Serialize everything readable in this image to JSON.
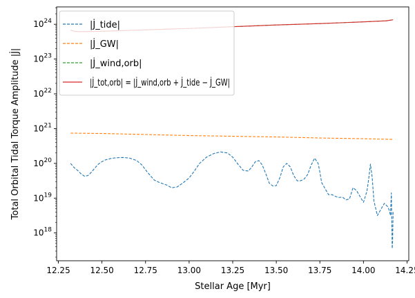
{
  "chart_data": {
    "type": "line",
    "title": "",
    "xlabel": "Stellar Age [Myr]",
    "ylabel": "Total Orbital Tidal Torque Amplitude |J̇|",
    "xlim": [
      12.24,
      14.26
    ],
    "ylim_log10": [
      17.2,
      24.5
    ],
    "yscale": "log",
    "x_ticks": [
      12.25,
      12.5,
      12.75,
      13.0,
      13.25,
      13.5,
      13.75,
      14.0,
      14.25
    ],
    "x_tick_labels": [
      "12.25",
      "12.50",
      "12.75",
      "13.00",
      "13.25",
      "13.50",
      "13.75",
      "14.00",
      "14.25"
    ],
    "y_tick_exponents": [
      18,
      19,
      20,
      21,
      22,
      23,
      24
    ],
    "y_tick_labels": [
      "10^18",
      "10^19",
      "10^20",
      "10^21",
      "10^22",
      "10^23",
      "10^24"
    ],
    "grid": false,
    "legend_position": "top-left",
    "series": [
      {
        "name": "|J̇_tide|",
        "color": "#1f77b4",
        "dash": "dashed",
        "x": [
          12.32,
          12.34,
          12.36,
          12.38,
          12.4,
          12.42,
          12.44,
          12.46,
          12.48,
          12.5,
          12.52,
          12.55,
          12.58,
          12.62,
          12.66,
          12.7,
          12.73,
          12.76,
          12.8,
          12.83,
          12.87,
          12.9,
          12.93,
          12.96,
          13.0,
          13.03,
          13.06,
          13.1,
          13.14,
          13.18,
          13.22,
          13.25,
          13.28,
          13.31,
          13.34,
          13.36,
          13.38,
          13.4,
          13.42,
          13.44,
          13.46,
          13.48,
          13.5,
          13.52,
          13.54,
          13.56,
          13.58,
          13.6,
          13.62,
          13.64,
          13.66,
          13.68,
          13.7,
          13.72,
          13.74,
          13.75,
          13.76,
          13.78,
          13.8,
          13.82,
          13.84,
          13.86,
          13.88,
          13.9,
          13.92,
          13.94,
          13.96,
          13.98,
          14.0,
          14.02,
          14.03,
          14.04,
          14.05,
          14.06,
          14.08,
          14.1,
          14.12,
          14.14,
          14.15,
          14.155,
          14.16,
          14.163,
          14.165,
          14.167,
          14.17
        ],
        "y": [
          20.0,
          19.88,
          19.8,
          19.7,
          19.63,
          19.65,
          19.75,
          19.87,
          19.98,
          20.05,
          20.1,
          20.14,
          20.16,
          20.17,
          20.15,
          20.08,
          19.95,
          19.75,
          19.52,
          19.45,
          19.38,
          19.3,
          19.32,
          19.42,
          19.58,
          19.78,
          20.0,
          20.18,
          20.28,
          20.33,
          20.3,
          20.18,
          19.98,
          19.8,
          19.78,
          19.9,
          20.05,
          20.08,
          19.95,
          19.7,
          19.43,
          19.35,
          19.36,
          19.58,
          19.9,
          20.0,
          19.9,
          19.65,
          19.5,
          19.5,
          19.55,
          19.68,
          19.95,
          20.15,
          20.0,
          19.75,
          19.45,
          19.27,
          19.1,
          19.1,
          19.05,
          19.02,
          19.03,
          18.95,
          18.98,
          19.3,
          19.22,
          19.05,
          18.88,
          19.2,
          19.55,
          19.98,
          19.6,
          18.92,
          18.5,
          18.68,
          18.85,
          18.75,
          18.62,
          18.5,
          19.15,
          18.25,
          17.55,
          17.75,
          18.6
        ]
      },
      {
        "name": "|J̇_GW|",
        "color": "#ff7f0e",
        "dash": "dashed",
        "x": [
          12.32,
          12.5,
          12.75,
          13.0,
          13.25,
          13.5,
          13.75,
          14.0,
          14.17
        ],
        "y": [
          20.87,
          20.86,
          20.83,
          20.8,
          20.78,
          20.76,
          20.73,
          20.71,
          20.69
        ]
      },
      {
        "name": "|J̇_wind,orb|",
        "color": "#2ca02c",
        "dash": "dashed",
        "x": [
          12.32,
          12.34,
          12.36,
          12.4,
          12.5,
          12.75,
          13.0,
          13.25,
          13.5,
          13.75,
          14.0,
          14.13,
          14.17
        ],
        "y": [
          23.83,
          23.8,
          23.79,
          23.79,
          23.8,
          23.84,
          23.88,
          23.93,
          23.98,
          24.02,
          24.07,
          24.1,
          24.13
        ]
      },
      {
        "name": "|J̇_tot,orb| = |J̇_wind,orb + J̇_tide − J̇_GW|",
        "color": "#d62728",
        "dash": "solid",
        "x": [
          12.32,
          12.34,
          12.36,
          12.4,
          12.5,
          12.75,
          13.0,
          13.25,
          13.5,
          13.75,
          14.0,
          14.13,
          14.17
        ],
        "y": [
          23.83,
          23.8,
          23.79,
          23.79,
          23.8,
          23.84,
          23.88,
          23.93,
          23.98,
          24.02,
          24.07,
          24.1,
          24.13
        ]
      }
    ]
  }
}
